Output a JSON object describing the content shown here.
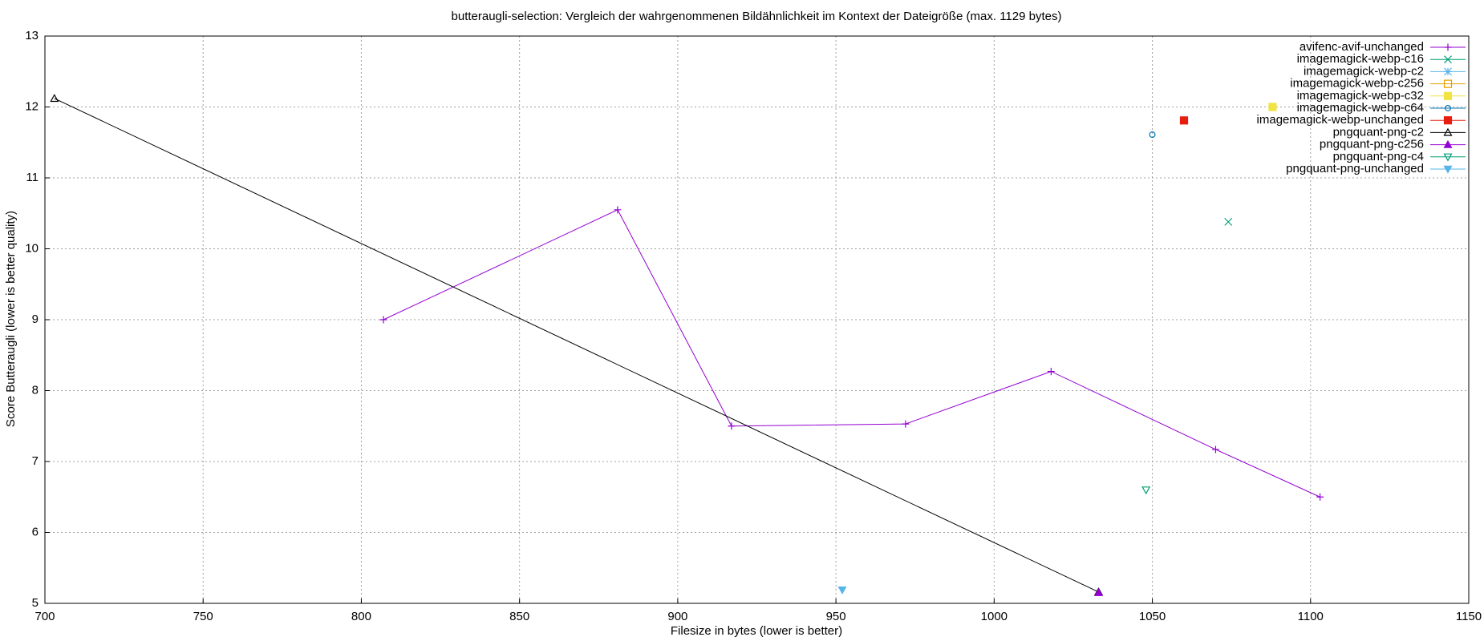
{
  "chart_data": {
    "type": "line",
    "title": "butteraugli-selection: Vergleich der wahrgenommenen Bildähnlichkeit im Kontext der Dateigröße (max. 1129 bytes)",
    "x_label": "Filesize in bytes (lower is better)",
    "y_label": "Score Butteraugli (lower is better quality)",
    "xlim": [
      700,
      1150
    ],
    "xticks": [
      700,
      750,
      800,
      850,
      900,
      950,
      1000,
      1050,
      1100,
      1150
    ],
    "ylim": [
      5,
      13
    ],
    "yticks": [
      5,
      6,
      7,
      8,
      9,
      10,
      11,
      12,
      13
    ],
    "grid": true,
    "legend": "top-right",
    "series": [
      {
        "name": "avifenc-avif-unchanged",
        "color": "#9400d3",
        "marker": "plus",
        "lines": true,
        "x": [
          807,
          881,
          917,
          972,
          1018,
          1070,
          1103
        ],
        "values": [
          9.0,
          10.55,
          7.5,
          7.53,
          8.27,
          7.17,
          6.5
        ]
      },
      {
        "name": "imagemagick-webp-c16",
        "color": "#009e73",
        "marker": "cross",
        "lines": false,
        "x": [
          1074
        ],
        "values": [
          10.38
        ]
      },
      {
        "name": "imagemagick-webp-c2",
        "color": "#56b4e9",
        "marker": "star",
        "lines": false,
        "x": [],
        "values": []
      },
      {
        "name": "imagemagick-webp-c256",
        "color": "#e69f00",
        "marker": "open-square",
        "lines": false,
        "x": [],
        "values": []
      },
      {
        "name": "imagemagick-webp-c32",
        "color": "#f0e442",
        "marker": "filled-square",
        "lines": false,
        "x": [
          1088
        ],
        "values": [
          12.0
        ]
      },
      {
        "name": "imagemagick-webp-c64",
        "color": "#0072b2",
        "marker": "open-circle",
        "lines": false,
        "x": [
          1050
        ],
        "values": [
          11.61
        ]
      },
      {
        "name": "imagemagick-webp-unchanged",
        "color": "#e51e10",
        "marker": "filled-square",
        "lines": false,
        "x": [
          1060
        ],
        "values": [
          11.81
        ]
      },
      {
        "name": "pngquant-png-c2",
        "color": "#000000",
        "marker": "open-triangle",
        "lines": true,
        "x": [
          703,
          1033
        ],
        "values": [
          12.12,
          5.16
        ]
      },
      {
        "name": "pngquant-png-c256",
        "color": "#9400d3",
        "marker": "filled-triangle",
        "lines": false,
        "x": [
          1033
        ],
        "values": [
          5.15
        ]
      },
      {
        "name": "pngquant-png-c4",
        "color": "#009e73",
        "marker": "open-down-triangle",
        "lines": false,
        "x": [
          1048
        ],
        "values": [
          6.6
        ]
      },
      {
        "name": "pngquant-png-unchanged",
        "color": "#56b4e9",
        "marker": "filled-down-triangle",
        "lines": false,
        "x": [
          952
        ],
        "values": [
          5.19
        ]
      }
    ]
  }
}
